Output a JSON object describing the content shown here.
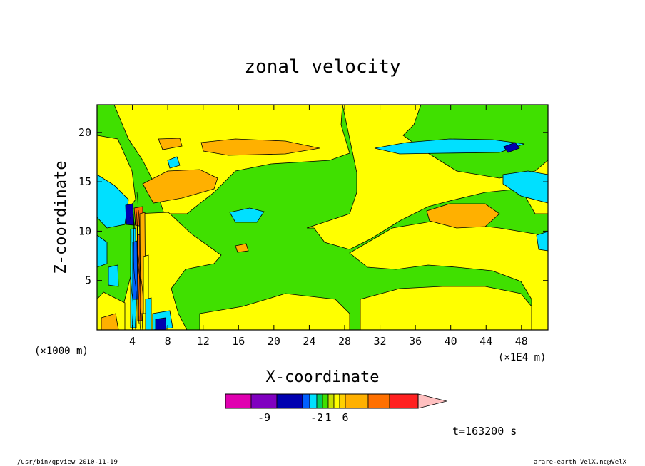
{
  "chart_data": {
    "type": "contour",
    "title": "zonal velocity",
    "xlabel": "X-coordinate",
    "ylabel": "Z-coordinate",
    "x_unit": "(×1E4 m)",
    "y_unit": "(×1000 m)",
    "xlim": [
      0,
      51
    ],
    "ylim": [
      0,
      22.8
    ],
    "x_ticks": [
      4,
      8,
      12,
      16,
      20,
      24,
      28,
      32,
      36,
      40,
      44,
      48
    ],
    "y_ticks": [
      5,
      10,
      15,
      20
    ],
    "colorbar": {
      "colors": [
        "#e000b0",
        "#8000c0",
        "#0000b0",
        "#0060ff",
        "#00e0ff",
        "#00d060",
        "#40e000",
        "#c8e000",
        "#ffff00",
        "#ffd000",
        "#ffb000",
        "#ff7000",
        "#ff2020",
        "#ff8080",
        "#ffc0c0"
      ],
      "labels": [
        {
          "text": "-9",
          "index": 1.5
        },
        {
          "text": "-2",
          "index": 5
        },
        {
          "text": "1",
          "index": 7
        },
        {
          "text": "6",
          "index": 10
        }
      ]
    },
    "grid": false,
    "legend": "colorbar-bottom"
  },
  "annotation_time": "t=163200 s",
  "footer": {
    "left": "/usr/bin/gpview   2010-11-19",
    "right": "arare-earth_VelX.nc@VelX"
  }
}
